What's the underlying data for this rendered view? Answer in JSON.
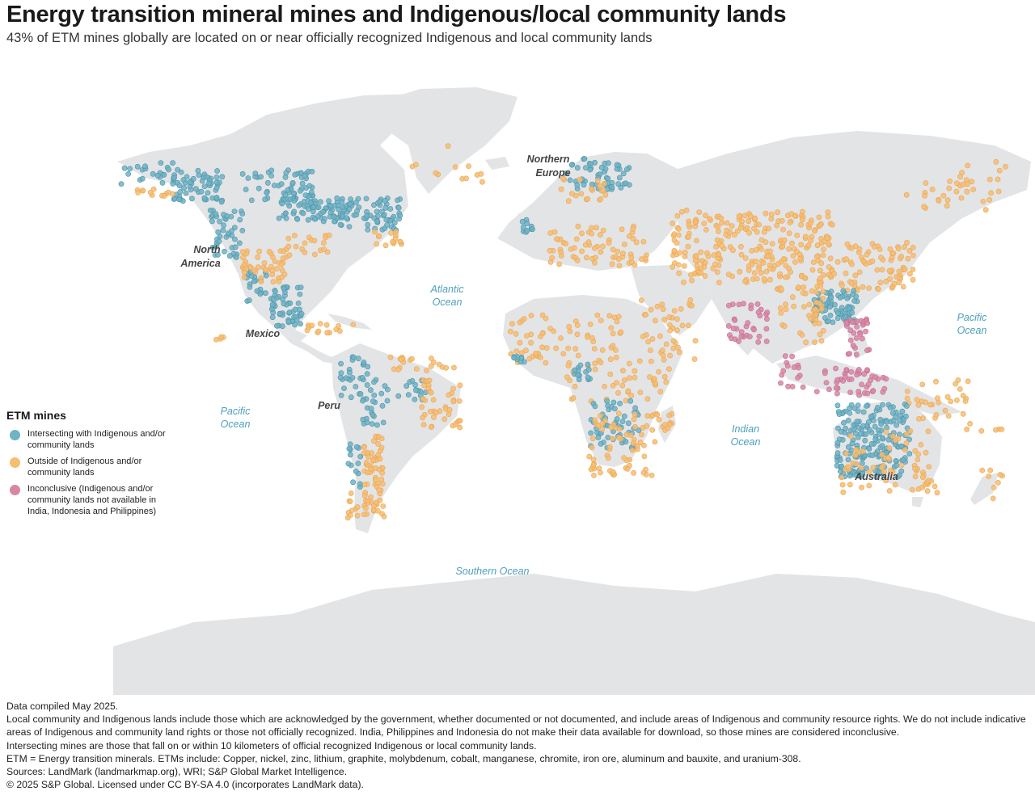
{
  "title": "Energy transition mineral mines and Indigenous/local community lands",
  "subtitle": "43% of ETM mines globally are located on or near officially recognized Indigenous and local community lands",
  "colors": {
    "land": "#e3e4e6",
    "intersecting": "#6fb3c6",
    "outside": "#f7bd72",
    "inconclusive": "#d986a6",
    "ocean_label": "#4e9fbe"
  },
  "legend": {
    "title": "ETM mines",
    "items": [
      {
        "key": "intersecting",
        "label": "Intersecting with Indigenous and/or community lands",
        "color": "#6fb3c6"
      },
      {
        "key": "outside",
        "label": "Outside of Indigenous and/or community lands",
        "color": "#f7bd72"
      },
      {
        "key": "inconclusive",
        "label": "Inconclusive (Indigenous and/or community lands not available in India, Indonesia and Philippines)",
        "color": "#d986a6"
      }
    ]
  },
  "map_labels": {
    "regions": [
      "Northern Europe",
      "North America",
      "Mexico",
      "Peru",
      "Australia"
    ],
    "oceans": [
      "Atlantic Ocean",
      "Pacific Ocean",
      "Pacific Ocean",
      "Indian Ocean",
      "Southern Ocean"
    ]
  },
  "notes": [
    "Data compiled May 2025.",
    "Local community and Indigenous lands include those which are acknowledged by the government, whether documented or not documented, and include areas of Indigenous and community resource rights. We do not include indicative areas of Indigenous and community land rights or those not officially recognized. India, Philippines and Indonesia do not make their data available for download, so those mines are considered inconclusive.",
    "Intersecting mines are those that fall on or within 10 kilometers of official recognized Indigenous or local community lands.",
    "ETM = Energy transition minerals. ETMs include: Copper, nickel, zinc, lithium, graphite, molybdenum, cobalt, manganese, chromite, iron ore, aluminum and bauxite, and uranium-308.",
    "Sources: LandMark (landmarkmap.org), WRI; S&P Global Market Intelligence.",
    "© 2025 S&P Global. Licensed under CC BY-SA 4.0 (incorporates LandMark data)."
  ]
}
